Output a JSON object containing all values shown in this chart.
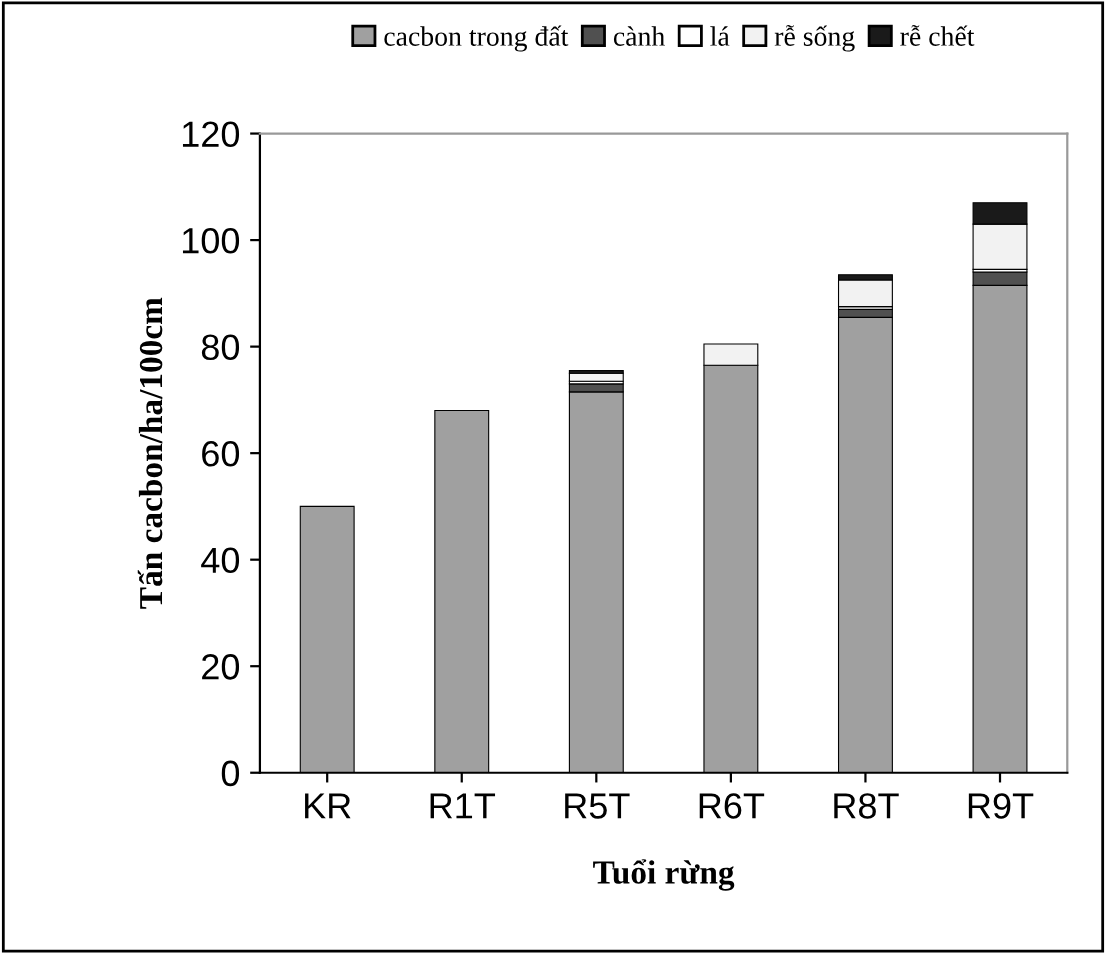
{
  "chart_data": {
    "type": "bar",
    "stacked": true,
    "xlabel": "Tuổi rừng",
    "ylabel": "Tấn cacbon/ha/100cm",
    "categories": [
      "KR",
      "R1T",
      "R5T",
      "R6T",
      "R8T",
      "R9T"
    ],
    "series": [
      {
        "name": "cacbon trong đất",
        "color": "#a0a0a0",
        "values": [
          50,
          68,
          71.5,
          76.5,
          85.5,
          91.5
        ]
      },
      {
        "name": "cành",
        "color": "#505050",
        "values": [
          null,
          null,
          1.5,
          null,
          1.5,
          2.5
        ]
      },
      {
        "name": "lá",
        "color": "#ffffff",
        "values": [
          null,
          null,
          0.5,
          null,
          0.5,
          0.5
        ]
      },
      {
        "name": "rễ sống",
        "color": "#f2f2f2",
        "values": [
          null,
          null,
          1.5,
          4,
          5,
          8.5
        ]
      },
      {
        "name": "rễ chết",
        "color": "#1a1a1a",
        "values": [
          null,
          null,
          0.5,
          null,
          1,
          4
        ]
      }
    ],
    "ylim": [
      0,
      120
    ],
    "yticks": [
      0,
      20,
      40,
      60,
      80,
      100,
      120
    ],
    "grid": false,
    "legend": "top"
  }
}
